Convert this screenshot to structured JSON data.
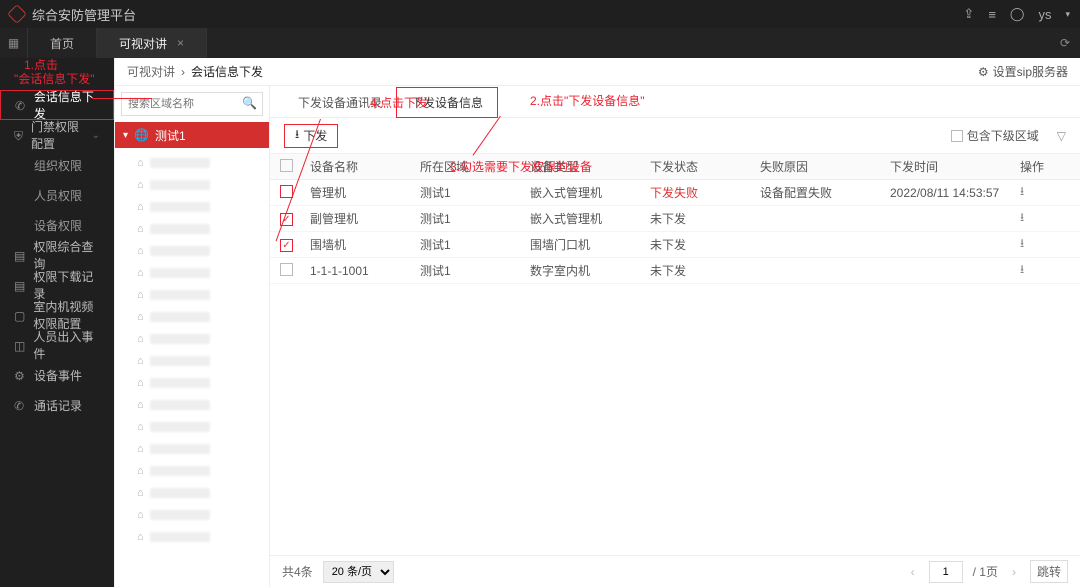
{
  "app": {
    "title": "综合安防管理平台",
    "user": "ys"
  },
  "tabs": {
    "home": "首页",
    "video": "可视对讲"
  },
  "nav": {
    "session": "会话信息下发",
    "access": "门禁权限配置",
    "org": "组织权限",
    "person": "人员权限",
    "device": "设备权限",
    "query": "权限综合查询",
    "download": "权限下载记录",
    "indoor": "室内机视频权限配置",
    "inout": "人员出入事件",
    "devevent": "设备事件",
    "calllog": "通话记录"
  },
  "crumbs": {
    "a": "可视对讲",
    "b": "会话信息下发",
    "sip": "设置sip服务器"
  },
  "tree": {
    "search_ph": "搜索区域名称",
    "root": "测试1",
    "item_count": 18
  },
  "subtabs": {
    "a": "下发设备通讯录",
    "b": "下发设备信息"
  },
  "toolbar": {
    "download": "下发",
    "include_sub": "包含下级区域"
  },
  "columns": {
    "name": "设备名称",
    "area": "所在区域",
    "type": "设备类型",
    "status": "下发状态",
    "reason": "失败原因",
    "time": "下发时间",
    "op": "操作"
  },
  "rows": [
    {
      "chk": false,
      "chk_boxed": true,
      "name": "管理机",
      "area": "测试1",
      "type": "嵌入式管理机",
      "status": "下发失败",
      "status_fail": true,
      "reason": "设备配置失败",
      "time": "2022/08/11 14:53:57"
    },
    {
      "chk": true,
      "chk_boxed": true,
      "name": "副管理机",
      "area": "测试1",
      "type": "嵌入式管理机",
      "status": "未下发",
      "status_fail": false,
      "reason": "",
      "time": ""
    },
    {
      "chk": true,
      "chk_boxed": true,
      "name": "围墙机",
      "area": "测试1",
      "type": "围墙门口机",
      "status": "未下发",
      "status_fail": false,
      "reason": "",
      "time": ""
    },
    {
      "chk": false,
      "chk_boxed": false,
      "name": "1-1-1-1001",
      "area": "测试1",
      "type": "数字室内机",
      "status": "未下发",
      "status_fail": false,
      "reason": "",
      "time": ""
    }
  ],
  "footer": {
    "total": "共4条",
    "page_size": "20 条/页",
    "page": "1",
    "per": "/ 1页",
    "jump": "跳转"
  },
  "annot": {
    "a1": "1.点击",
    "a1b": "\"会话信息下发\"",
    "a2": "2.点击\"下发设备信息\"",
    "a3": "3.勾选需要下发权限的设备",
    "a4": "4.点击下发"
  },
  "colors": {
    "accent": "#d32f2f",
    "annot": "#e23"
  }
}
